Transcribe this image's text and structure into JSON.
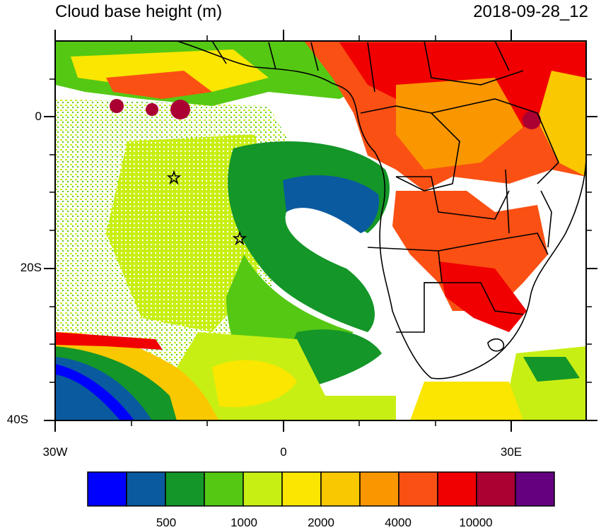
{
  "title_left": "Cloud base height (m)",
  "title_right": "2018-09-28_12",
  "map": {
    "y_axis_labels": [
      "0",
      "20S",
      "40S"
    ],
    "x_axis_labels": [
      "30W",
      "0",
      "30E"
    ],
    "markers": [
      {
        "name": "star-1",
        "lon": -14.5,
        "lat": -8.0
      },
      {
        "name": "star-2",
        "lon": -5.5,
        "lat": -16.0
      }
    ]
  },
  "colorbar": {
    "colors": [
      "#0000ff",
      "#0a5aa0",
      "#149628",
      "#55c814",
      "#c8ef14",
      "#fae600",
      "#fac800",
      "#fa9600",
      "#fa5014",
      "#f00000",
      "#aa0032",
      "#640080"
    ],
    "labels": [
      "500",
      "1000",
      "2000",
      "4000",
      "10000"
    ]
  }
}
